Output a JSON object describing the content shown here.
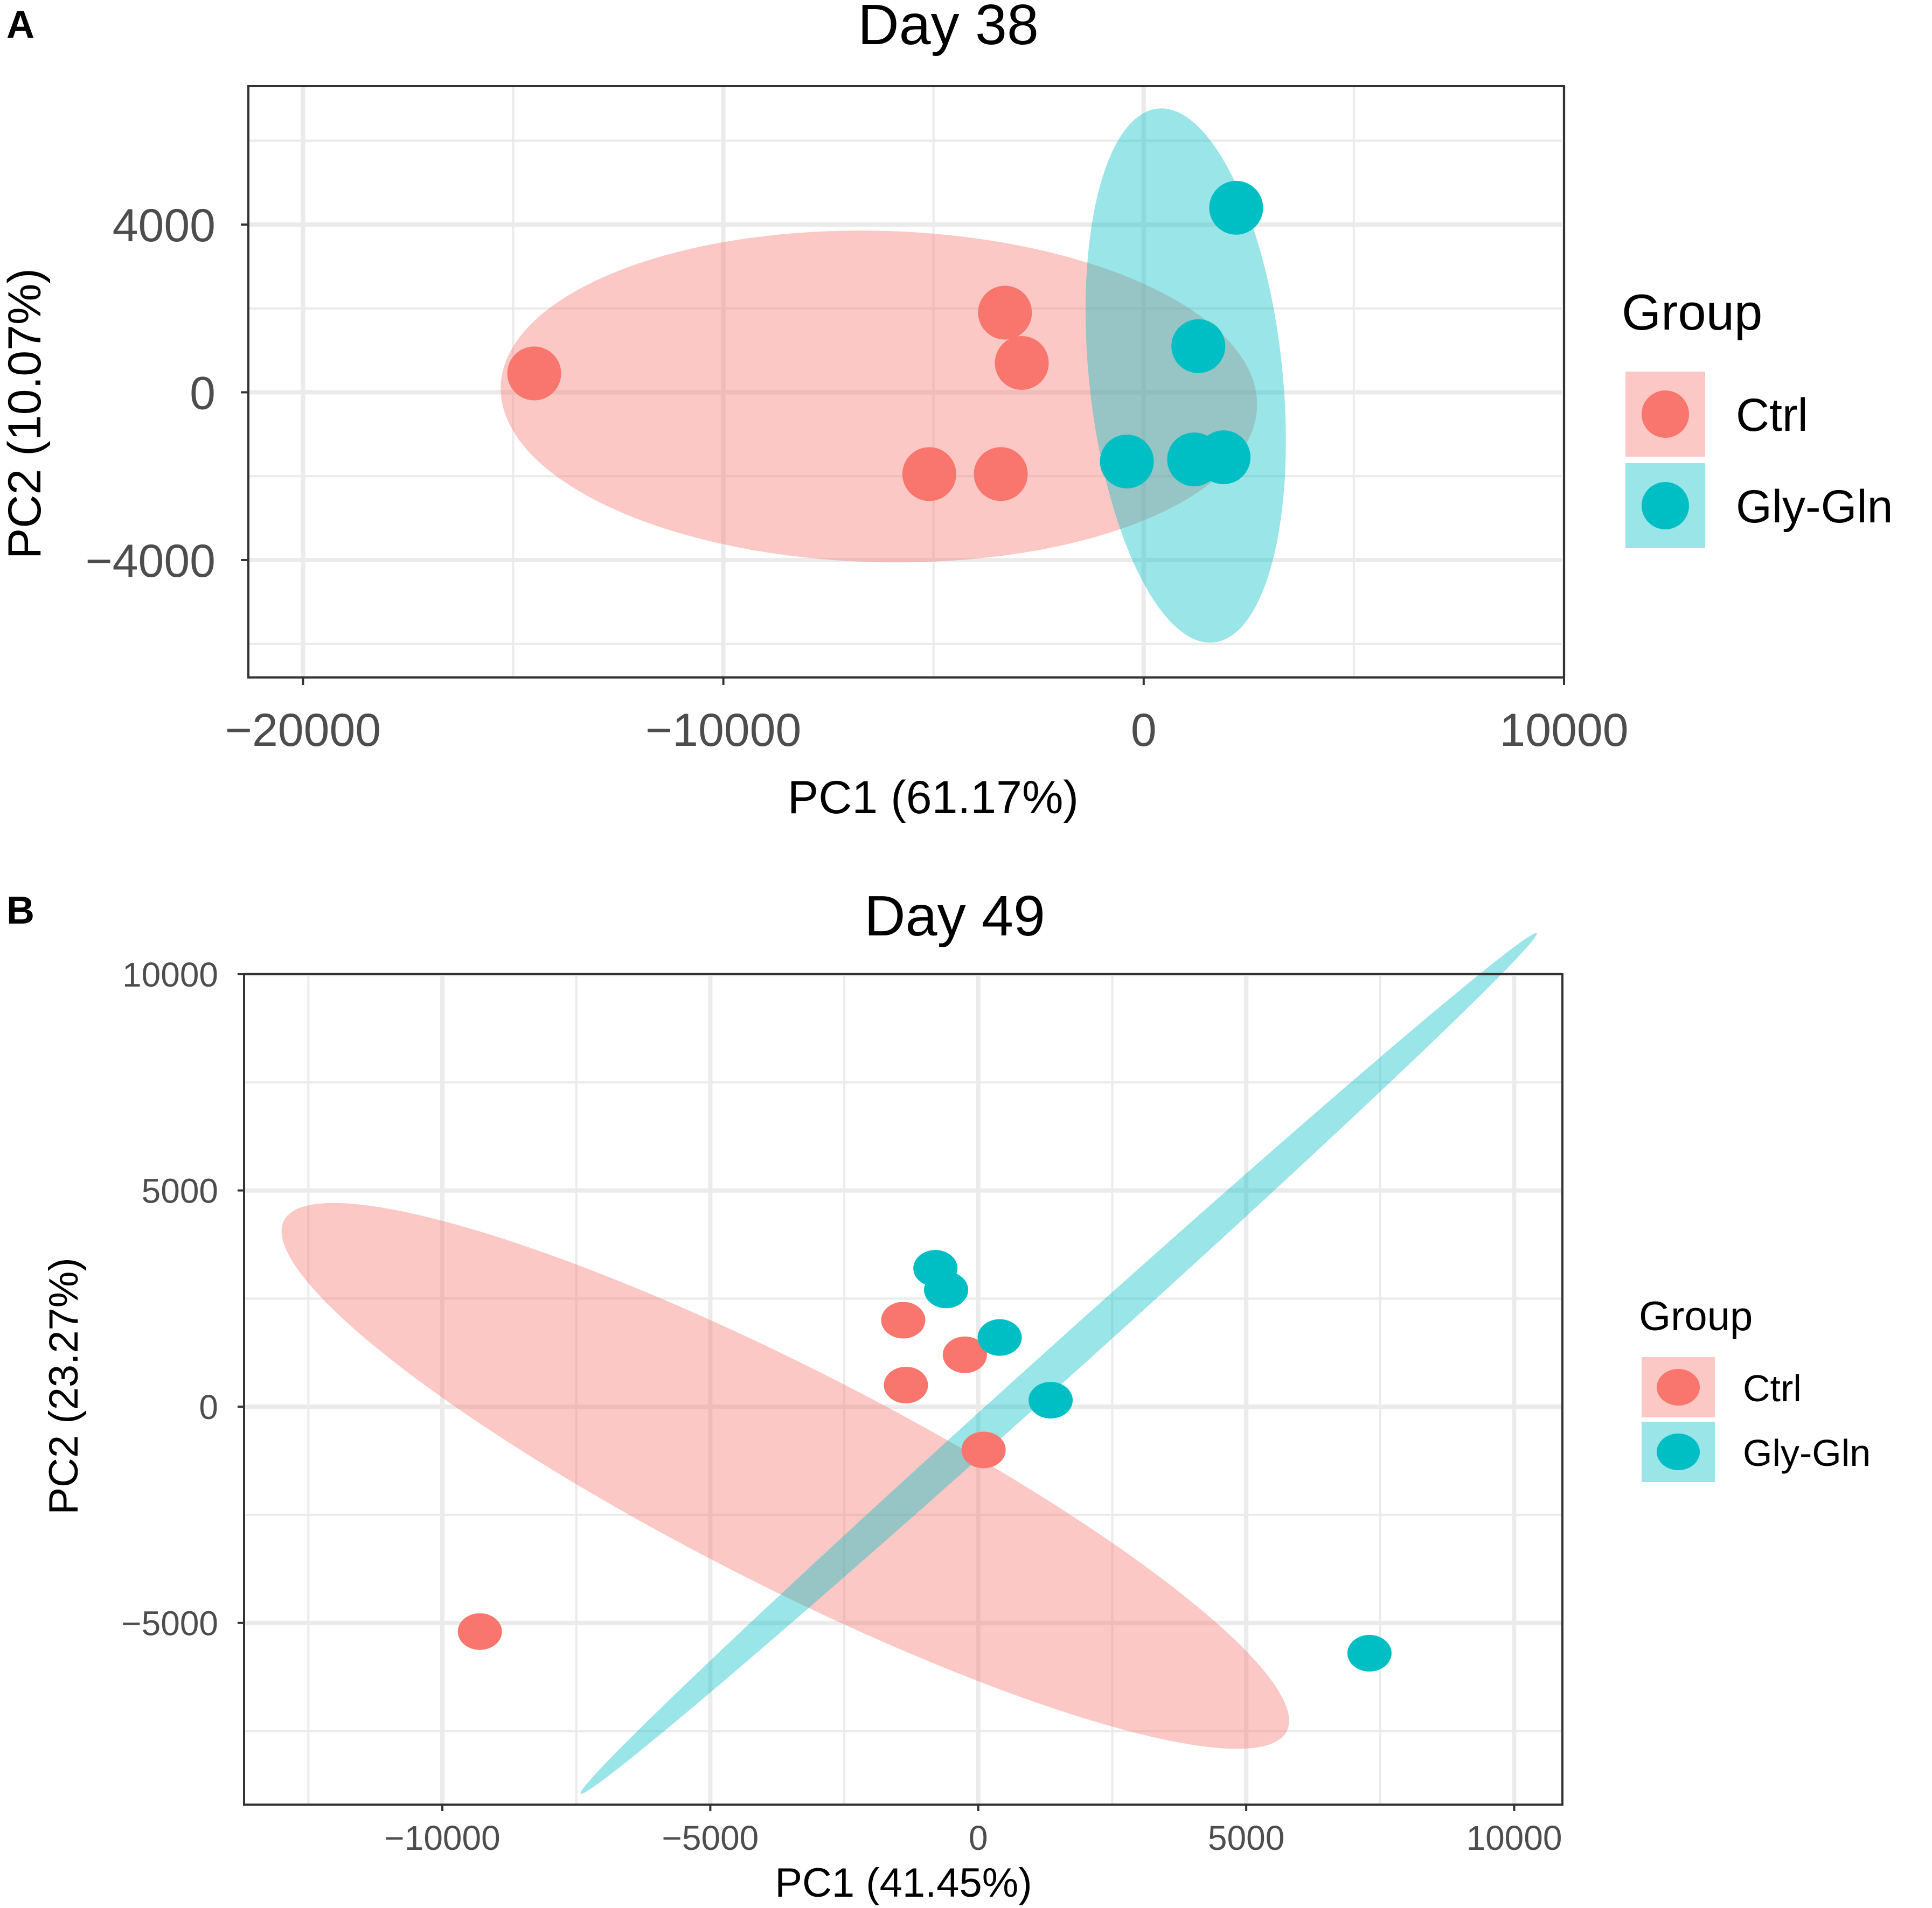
{
  "colors": {
    "ctrl": "#F8766D",
    "glygln": "#00BFC4",
    "ctrl_fill": "#F8766D",
    "glygln_fill": "#00BFC4",
    "grid": "#EBEBEB",
    "axis_text": "#4D4D4D",
    "text": "#000000",
    "border": "#333333"
  },
  "chart_data": [
    {
      "type": "scatter",
      "panel_label": "A",
      "title": "Day 38",
      "xlabel": "PC1 (61.17%)",
      "ylabel": "PC2 (10.07%)",
      "xlim": [
        -21300,
        10000
      ],
      "ylim": [
        -6800,
        7300
      ],
      "xticks": [
        -20000,
        -10000,
        0,
        10000
      ],
      "xtick_labels": [
        "−20000",
        "−10000",
        "0",
        "10000"
      ],
      "yticks": [
        -4000,
        0,
        4000
      ],
      "ytick_labels": [
        "−4000",
        "0",
        "4000"
      ],
      "grid": true,
      "legend": {
        "title": "Group",
        "position": "right",
        "entries": [
          "Ctrl",
          "Gly-Gln"
        ]
      },
      "series": [
        {
          "name": "Ctrl",
          "color_key": "ctrl",
          "points": [
            {
              "x": -14500,
              "y": 450
            },
            {
              "x": -3300,
              "y": 1900
            },
            {
              "x": -2900,
              "y": 700
            },
            {
              "x": -5100,
              "y": -1950
            },
            {
              "x": -3400,
              "y": -1950
            }
          ],
          "ellipse": {
            "cx": -6300,
            "cy": -100,
            "rx": 9000,
            "ry": 3950,
            "angle": -1.5
          }
        },
        {
          "name": "Gly-Gln",
          "color_key": "glygln",
          "points": [
            {
              "x": 2200,
              "y": 4400
            },
            {
              "x": 1300,
              "y": 1100
            },
            {
              "x": -400,
              "y": -1650
            },
            {
              "x": 1200,
              "y": -1600
            },
            {
              "x": 1900,
              "y": -1550
            }
          ],
          "ellipse": {
            "cx": 1000,
            "cy": 400,
            "rx": 2300,
            "ry": 6400,
            "angle": 6
          }
        }
      ]
    },
    {
      "type": "scatter",
      "panel_label": "B",
      "title": "Day 49",
      "xlabel": "PC1 (41.45%)",
      "ylabel": "PC2 (23.27%)",
      "xlim": [
        -13700,
        10900
      ],
      "ylim": [
        -9200,
        10000
      ],
      "xticks": [
        -10000,
        -5000,
        0,
        5000,
        10000
      ],
      "xtick_labels": [
        "−10000",
        "−5000",
        "0",
        "5000",
        "10000"
      ],
      "yticks": [
        -5000,
        0,
        5000,
        10000
      ],
      "ytick_labels": [
        "−5000",
        "0",
        "5000",
        "10000"
      ],
      "grid": true,
      "legend": {
        "title": "Group",
        "position": "right",
        "entries": [
          "Ctrl",
          "Gly-Gln"
        ]
      },
      "series": [
        {
          "name": "Ctrl",
          "color_key": "ctrl",
          "points": [
            {
              "x": -9300,
              "y": -5200
            },
            {
              "x": -1400,
              "y": 2000
            },
            {
              "x": -1350,
              "y": 500
            },
            {
              "x": -250,
              "y": 1200
            },
            {
              "x": 100,
              "y": -1000
            }
          ],
          "ellipse": {
            "cx": -3600,
            "cy": -1600,
            "rx": 10500,
            "ry": 2500,
            "angle": -27
          }
        },
        {
          "name": "Gly-Gln",
          "color_key": "glygln",
          "points": [
            {
              "x": -800,
              "y": 3200
            },
            {
              "x": -600,
              "y": 2700
            },
            {
              "x": 400,
              "y": 1600
            },
            {
              "x": 1350,
              "y": 150
            },
            {
              "x": 7300,
              "y": -5700
            }
          ],
          "ellipse": {
            "cx": 1500,
            "cy": 1000,
            "rx": 12000,
            "ry": 400,
            "angle": 42
          }
        }
      ]
    }
  ]
}
